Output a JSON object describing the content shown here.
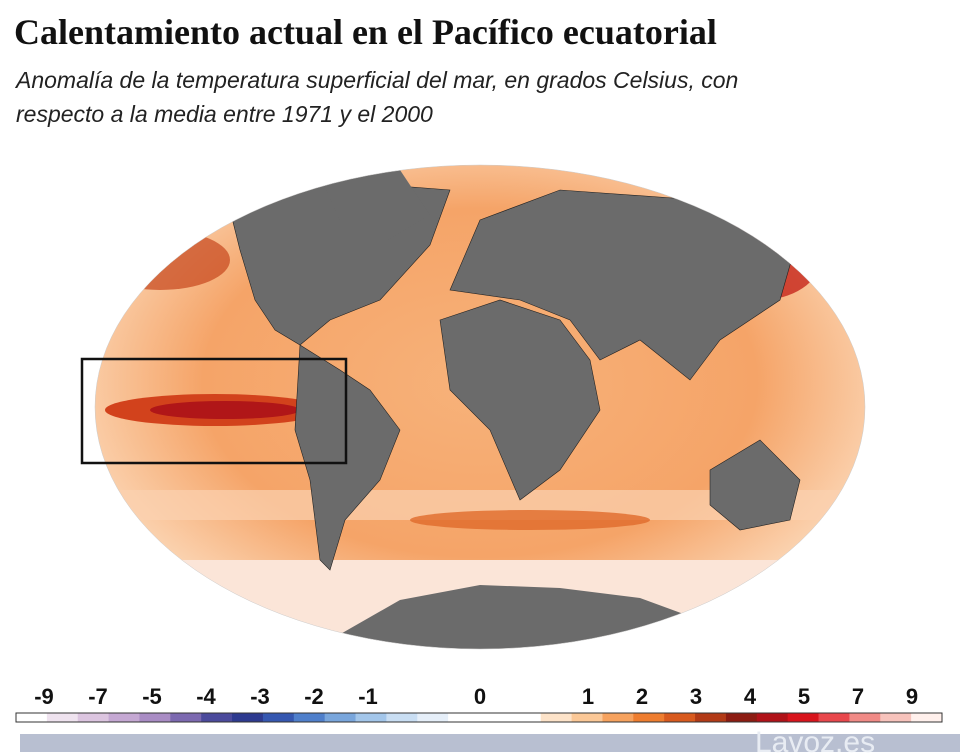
{
  "header": {
    "title": "Calentamiento actual en el Pacífico ecuatorial",
    "subtitle_lines": [
      "Anomalía de la temperatura superficial del mar, en grados Celsius, con",
      "respecto a la media entre 1971 y el 2000"
    ]
  },
  "legend": {
    "ticks": [
      -9,
      -7,
      -5,
      -4,
      -3,
      -2,
      -1,
      0,
      1,
      2,
      3,
      4,
      5,
      7,
      9
    ],
    "colors": [
      "#ffffff",
      "#efe3ef",
      "#dcc5e0",
      "#c5a8d3",
      "#a98cc4",
      "#7c69b0",
      "#4b4a9c",
      "#2d3a8f",
      "#3557b0",
      "#4f7fcb",
      "#79a6dc",
      "#a3c6ea",
      "#c9def3",
      "#e6eff9",
      "#ffffff",
      "#ffffff",
      "#ffffff",
      "#fde3c9",
      "#fbc897",
      "#f6a25e",
      "#ee7d2f",
      "#d85a1e",
      "#b23a16",
      "#8c1c12",
      "#b01218",
      "#d8141c",
      "#e8474c",
      "#f08a86",
      "#f7c3bc",
      "#fff0ec"
    ]
  },
  "footer": {
    "source": "Lavoz.es"
  }
}
